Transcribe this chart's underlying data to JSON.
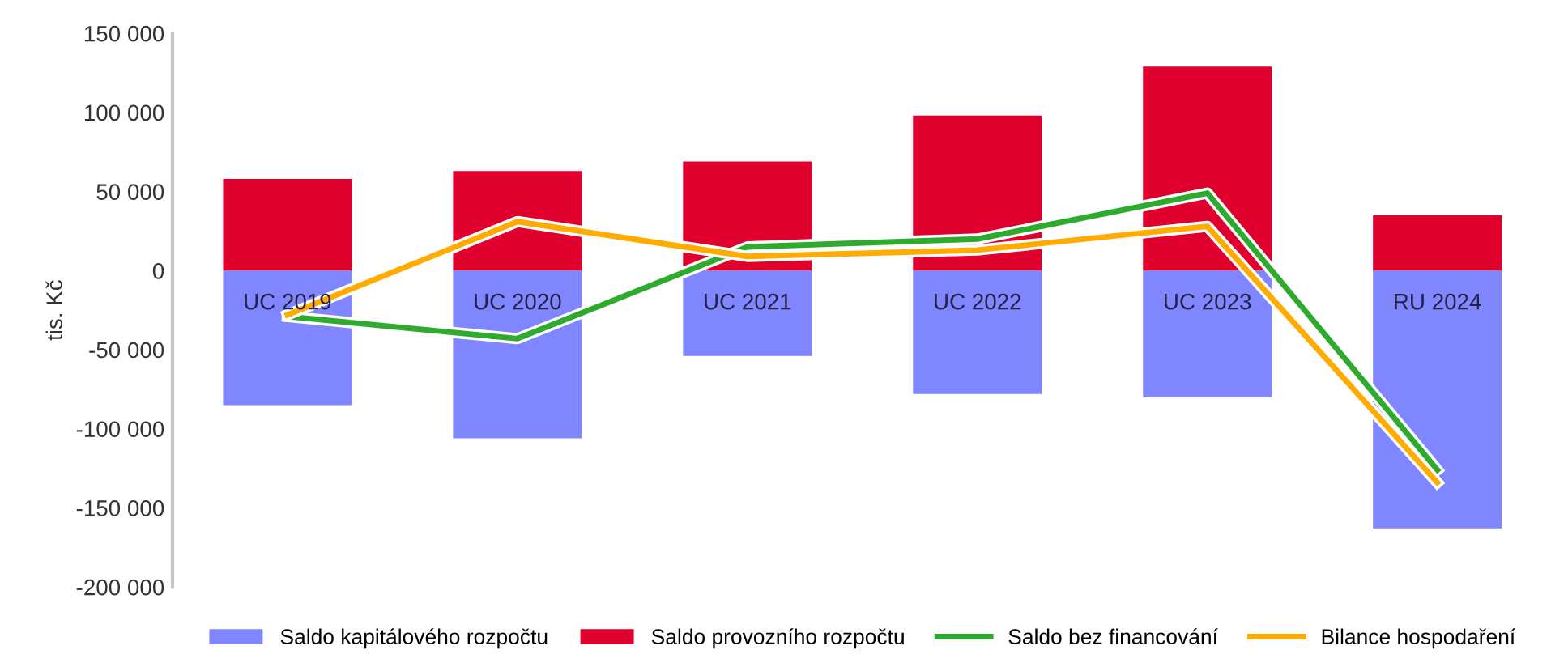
{
  "chart_data": {
    "type": "bar",
    "stacked": true,
    "ylabel": "tis. Kč",
    "categories": [
      "UC 2019",
      "UC 2020",
      "UC 2021",
      "UC 2022",
      "UC 2023",
      "RU 2024"
    ],
    "series": [
      {
        "name": "Saldo kapitálového rozpočtu",
        "color": "#7f86ff",
        "values": [
          -85000,
          -106000,
          -54000,
          -78000,
          -80000,
          -163000
        ]
      },
      {
        "name": "Saldo provozního rozpočtu",
        "color": "#e0002d",
        "values": [
          58000,
          63000,
          69000,
          98000,
          129000,
          35000
        ]
      },
      {
        "name": "Saldo bez financování",
        "type": "line",
        "color": "#2eaa2e",
        "values": [
          -29000,
          -43000,
          15000,
          20000,
          49000,
          -126000
        ]
      },
      {
        "name": "Bilance hospodaření",
        "type": "line",
        "color": "#ffab00",
        "values": [
          -28000,
          31000,
          9000,
          13000,
          28000,
          -134000
        ]
      }
    ],
    "ylim": [
      -200000,
      150000
    ],
    "yticks": [
      {
        "value": -200000,
        "label": "-200 000"
      },
      {
        "value": -150000,
        "label": "-150 000"
      },
      {
        "value": -100000,
        "label": "-100 000"
      },
      {
        "value": -50000,
        "label": "-50 000"
      },
      0,
      {
        "value": 50000,
        "label": "50 000"
      },
      {
        "value": 100000,
        "label": "100 000"
      },
      {
        "value": 150000,
        "label": "150 000"
      }
    ],
    "grid": false,
    "legend": "bottom",
    "marker": "none"
  }
}
